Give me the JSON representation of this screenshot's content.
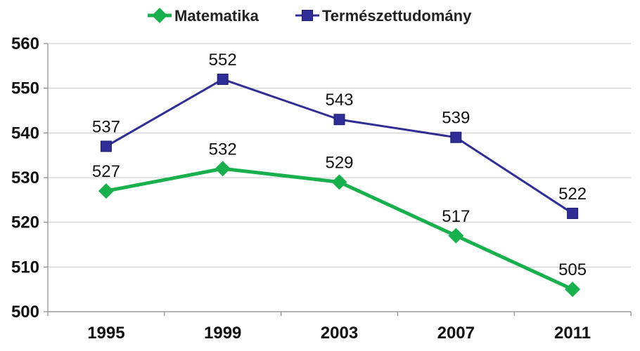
{
  "chart_data": {
    "type": "line",
    "title": "",
    "xlabel": "",
    "ylabel": "",
    "categories": [
      "1995",
      "1999",
      "2003",
      "2007",
      "2011"
    ],
    "ylim": [
      500,
      560
    ],
    "yticks": [
      500,
      510,
      520,
      530,
      540,
      550,
      560
    ],
    "grid": true,
    "legend": "top",
    "series": [
      {
        "name": "Matematika",
        "values": [
          527,
          532,
          529,
          517,
          505
        ],
        "color": "#18b04c",
        "marker": "diamond"
      },
      {
        "name": "Természettudomány",
        "values": [
          537,
          552,
          543,
          539,
          522
        ],
        "color": "#2e2e96",
        "marker": "square"
      }
    ]
  }
}
